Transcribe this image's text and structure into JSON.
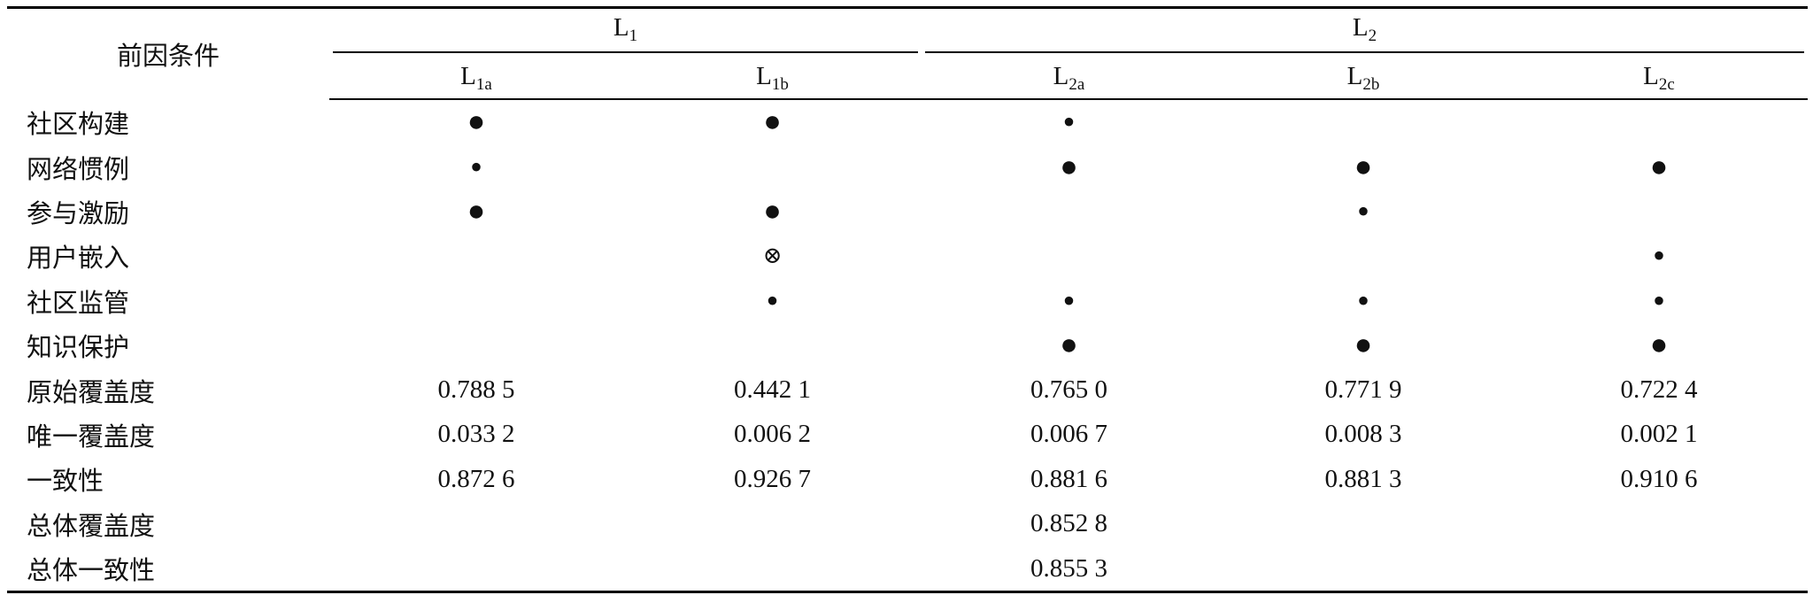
{
  "table": {
    "header": {
      "corner": "前因条件",
      "groups": [
        {
          "main": "L",
          "sub": "1"
        },
        {
          "main": "L",
          "sub": "2"
        }
      ],
      "columns": [
        {
          "main": "L",
          "sub": "1a"
        },
        {
          "main": "L",
          "sub": "1b"
        },
        {
          "main": "L",
          "sub": "2a"
        },
        {
          "main": "L",
          "sub": "2b"
        },
        {
          "main": "L",
          "sub": "2c"
        }
      ]
    },
    "rows": [
      {
        "label": "社区构建",
        "cells": [
          "●",
          "●",
          "•",
          null,
          null
        ]
      },
      {
        "label": "网络惯例",
        "cells": [
          "•",
          null,
          "●",
          "●",
          "●"
        ]
      },
      {
        "label": "参与激励",
        "cells": [
          "●",
          "●",
          null,
          "•",
          null
        ]
      },
      {
        "label": "用户嵌入",
        "cells": [
          null,
          "⊗",
          null,
          null,
          "•"
        ]
      },
      {
        "label": "社区监管",
        "cells": [
          null,
          "•",
          "•",
          "•",
          "•"
        ]
      },
      {
        "label": "知识保护",
        "cells": [
          null,
          null,
          "●",
          "●",
          "●"
        ]
      },
      {
        "label": "原始覆盖度",
        "cells": [
          "0.788 5",
          "0.442 1",
          "0.765 0",
          "0.771 9",
          "0.722 4"
        ]
      },
      {
        "label": "唯一覆盖度",
        "cells": [
          "0.033 2",
          "0.006 2",
          "0.006 7",
          "0.008 3",
          "0.002 1"
        ]
      },
      {
        "label": "一致性",
        "cells": [
          "0.872 6",
          "0.926 7",
          "0.881 6",
          "0.881 3",
          "0.910 6"
        ]
      },
      {
        "label": "总体覆盖度",
        "cells": [
          null,
          null,
          "0.852 8",
          null,
          null
        ]
      },
      {
        "label": "总体一致性",
        "cells": [
          null,
          null,
          "0.855 3",
          null,
          null
        ]
      }
    ]
  }
}
